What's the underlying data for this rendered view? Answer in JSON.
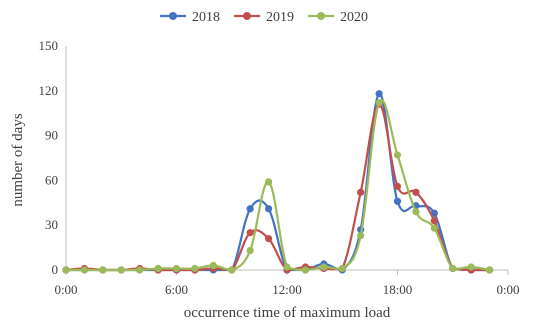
{
  "chart_data": {
    "type": "line",
    "title": "",
    "xlabel": "occurrence time of maximum load",
    "ylabel": "number of days",
    "ylim": [
      0,
      150
    ],
    "yticks": [
      0,
      30,
      60,
      90,
      120,
      150
    ],
    "xlim": [
      0,
      24
    ],
    "xtick_labels": [
      "0:00",
      "6:00",
      "12:00",
      "18:00",
      "0:00"
    ],
    "xtick_hours": [
      0,
      6,
      12,
      18,
      24
    ],
    "grid": false,
    "legend_position": "top",
    "x_hours": [
      0,
      1,
      2,
      3,
      4,
      5,
      6,
      7,
      8,
      9,
      10,
      11,
      12,
      13,
      14,
      15,
      16,
      17,
      18,
      19,
      20,
      21,
      22,
      23
    ],
    "series": [
      {
        "name": "2018",
        "color": "#4472C4",
        "values": [
          0,
          0,
          0,
          0,
          0,
          0,
          0,
          0,
          0,
          0,
          41,
          41,
          0,
          0,
          4,
          0,
          27,
          118,
          46,
          43,
          38,
          1,
          0,
          0
        ]
      },
      {
        "name": "2019",
        "color": "#C0504D",
        "values": [
          0,
          1,
          0,
          0,
          1,
          0,
          0,
          0,
          1,
          0,
          25,
          21,
          0,
          2,
          1,
          1,
          52,
          111,
          56,
          52,
          33,
          1,
          0,
          0
        ]
      },
      {
        "name": "2020",
        "color": "#9BBB59",
        "values": [
          0,
          0,
          0,
          0,
          0,
          1,
          1,
          1,
          3,
          0,
          13,
          59,
          2,
          0,
          2,
          1,
          23,
          112,
          77,
          39,
          28,
          1,
          2,
          0
        ]
      }
    ]
  }
}
